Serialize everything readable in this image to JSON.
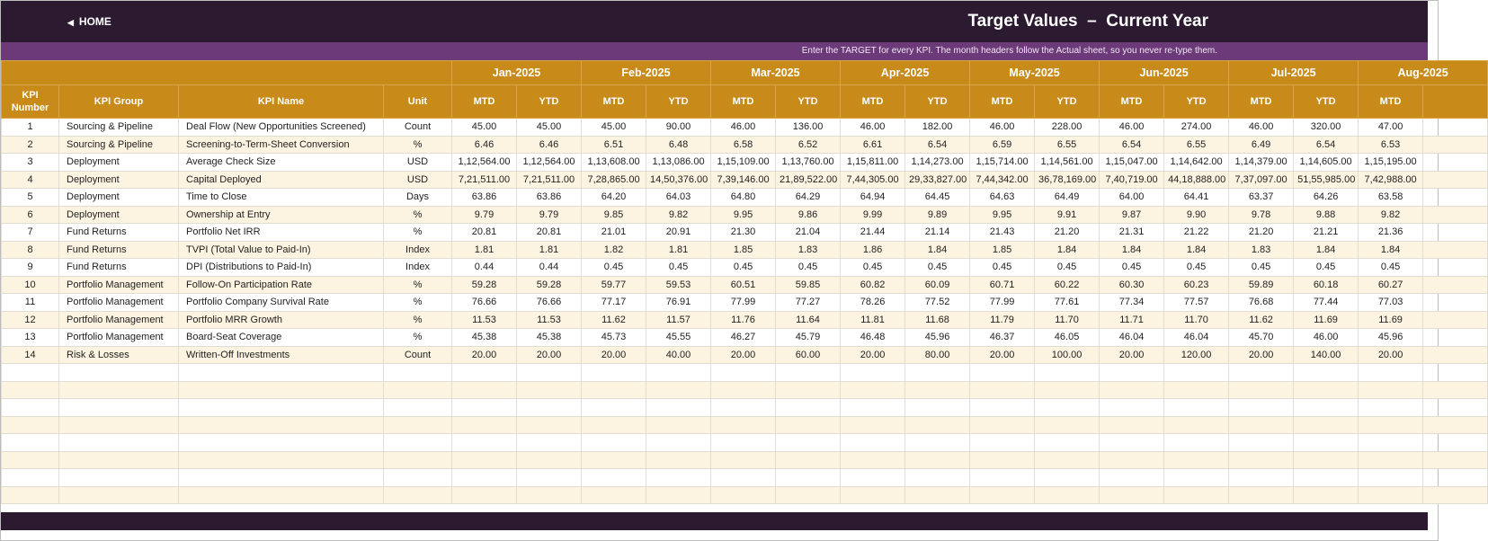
{
  "nav": {
    "home": "HOME"
  },
  "header": {
    "title": "Target Values  –  Current Year",
    "note": "Enter the TARGET for every KPI. The month headers follow the Actual sheet, so you never re-type them."
  },
  "table": {
    "columns": [
      "KPI Number",
      "KPI Group",
      "KPI Name",
      "Unit"
    ],
    "month_headers": [
      "Jan-2025",
      "Feb-2025",
      "Mar-2025",
      "Apr-2025",
      "May-2025",
      "Jun-2025",
      "Jul-2025",
      "Aug-2025"
    ],
    "sub_headers": [
      "MTD",
      "YTD"
    ],
    "rows": [
      [
        1,
        "Sourcing & Pipeline",
        "Deal Flow (New Opportunities Screened)",
        "Count",
        "45.00",
        "45.00",
        "45.00",
        "90.00",
        "46.00",
        "136.00",
        "46.00",
        "182.00",
        "46.00",
        "228.00",
        "46.00",
        "274.00",
        "46.00",
        "320.00",
        "47.00"
      ],
      [
        2,
        "Sourcing & Pipeline",
        "Screening-to-Term-Sheet Conversion",
        "%",
        "6.46",
        "6.46",
        "6.51",
        "6.48",
        "6.58",
        "6.52",
        "6.61",
        "6.54",
        "6.59",
        "6.55",
        "6.54",
        "6.55",
        "6.49",
        "6.54",
        "6.53"
      ],
      [
        3,
        "Deployment",
        "Average Check Size",
        "USD",
        "1,12,564.00",
        "1,12,564.00",
        "1,13,608.00",
        "1,13,086.00",
        "1,15,109.00",
        "1,13,760.00",
        "1,15,811.00",
        "1,14,273.00",
        "1,15,714.00",
        "1,14,561.00",
        "1,15,047.00",
        "1,14,642.00",
        "1,14,379.00",
        "1,14,605.00",
        "1,15,195.00"
      ],
      [
        4,
        "Deployment",
        "Capital Deployed",
        "USD",
        "7,21,511.00",
        "7,21,511.00",
        "7,28,865.00",
        "14,50,376.00",
        "7,39,146.00",
        "21,89,522.00",
        "7,44,305.00",
        "29,33,827.00",
        "7,44,342.00",
        "36,78,169.00",
        "7,40,719.00",
        "44,18,888.00",
        "7,37,097.00",
        "51,55,985.00",
        "7,42,988.00"
      ],
      [
        5,
        "Deployment",
        "Time to Close",
        "Days",
        "63.86",
        "63.86",
        "64.20",
        "64.03",
        "64.80",
        "64.29",
        "64.94",
        "64.45",
        "64.63",
        "64.49",
        "64.00",
        "64.41",
        "63.37",
        "64.26",
        "63.58"
      ],
      [
        6,
        "Deployment",
        "Ownership at Entry",
        "%",
        "9.79",
        "9.79",
        "9.85",
        "9.82",
        "9.95",
        "9.86",
        "9.99",
        "9.89",
        "9.95",
        "9.91",
        "9.87",
        "9.90",
        "9.78",
        "9.88",
        "9.82"
      ],
      [
        7,
        "Fund Returns",
        "Portfolio Net IRR",
        "%",
        "20.81",
        "20.81",
        "21.01",
        "20.91",
        "21.30",
        "21.04",
        "21.44",
        "21.14",
        "21.43",
        "21.20",
        "21.31",
        "21.22",
        "21.20",
        "21.21",
        "21.36"
      ],
      [
        8,
        "Fund Returns",
        "TVPI (Total Value to Paid-In)",
        "Index",
        "1.81",
        "1.81",
        "1.82",
        "1.81",
        "1.85",
        "1.83",
        "1.86",
        "1.84",
        "1.85",
        "1.84",
        "1.84",
        "1.84",
        "1.83",
        "1.84",
        "1.84"
      ],
      [
        9,
        "Fund Returns",
        "DPI (Distributions to Paid-In)",
        "Index",
        "0.44",
        "0.44",
        "0.45",
        "0.45",
        "0.45",
        "0.45",
        "0.45",
        "0.45",
        "0.45",
        "0.45",
        "0.45",
        "0.45",
        "0.45",
        "0.45",
        "0.45"
      ],
      [
        10,
        "Portfolio Management",
        "Follow-On Participation Rate",
        "%",
        "59.28",
        "59.28",
        "59.77",
        "59.53",
        "60.51",
        "59.85",
        "60.82",
        "60.09",
        "60.71",
        "60.22",
        "60.30",
        "60.23",
        "59.89",
        "60.18",
        "60.27"
      ],
      [
        11,
        "Portfolio Management",
        "Portfolio Company Survival Rate",
        "%",
        "76.66",
        "76.66",
        "77.17",
        "76.91",
        "77.99",
        "77.27",
        "78.26",
        "77.52",
        "77.99",
        "77.61",
        "77.34",
        "77.57",
        "76.68",
        "77.44",
        "77.03"
      ],
      [
        12,
        "Portfolio Management",
        "Portfolio MRR Growth",
        "%",
        "11.53",
        "11.53",
        "11.62",
        "11.57",
        "11.76",
        "11.64",
        "11.81",
        "11.68",
        "11.79",
        "11.70",
        "11.71",
        "11.70",
        "11.62",
        "11.69",
        "11.69"
      ],
      [
        13,
        "Portfolio Management",
        "Board-Seat Coverage",
        "%",
        "45.38",
        "45.38",
        "45.73",
        "45.55",
        "46.27",
        "45.79",
        "46.48",
        "45.96",
        "46.37",
        "46.05",
        "46.04",
        "46.04",
        "45.70",
        "46.00",
        "45.96"
      ],
      [
        14,
        "Risk & Losses",
        "Written-Off Investments",
        "Count",
        "20.00",
        "20.00",
        "20.00",
        "40.00",
        "20.00",
        "60.00",
        "20.00",
        "80.00",
        "20.00",
        "100.00",
        "20.00",
        "120.00",
        "20.00",
        "140.00",
        "20.00"
      ]
    ]
  }
}
